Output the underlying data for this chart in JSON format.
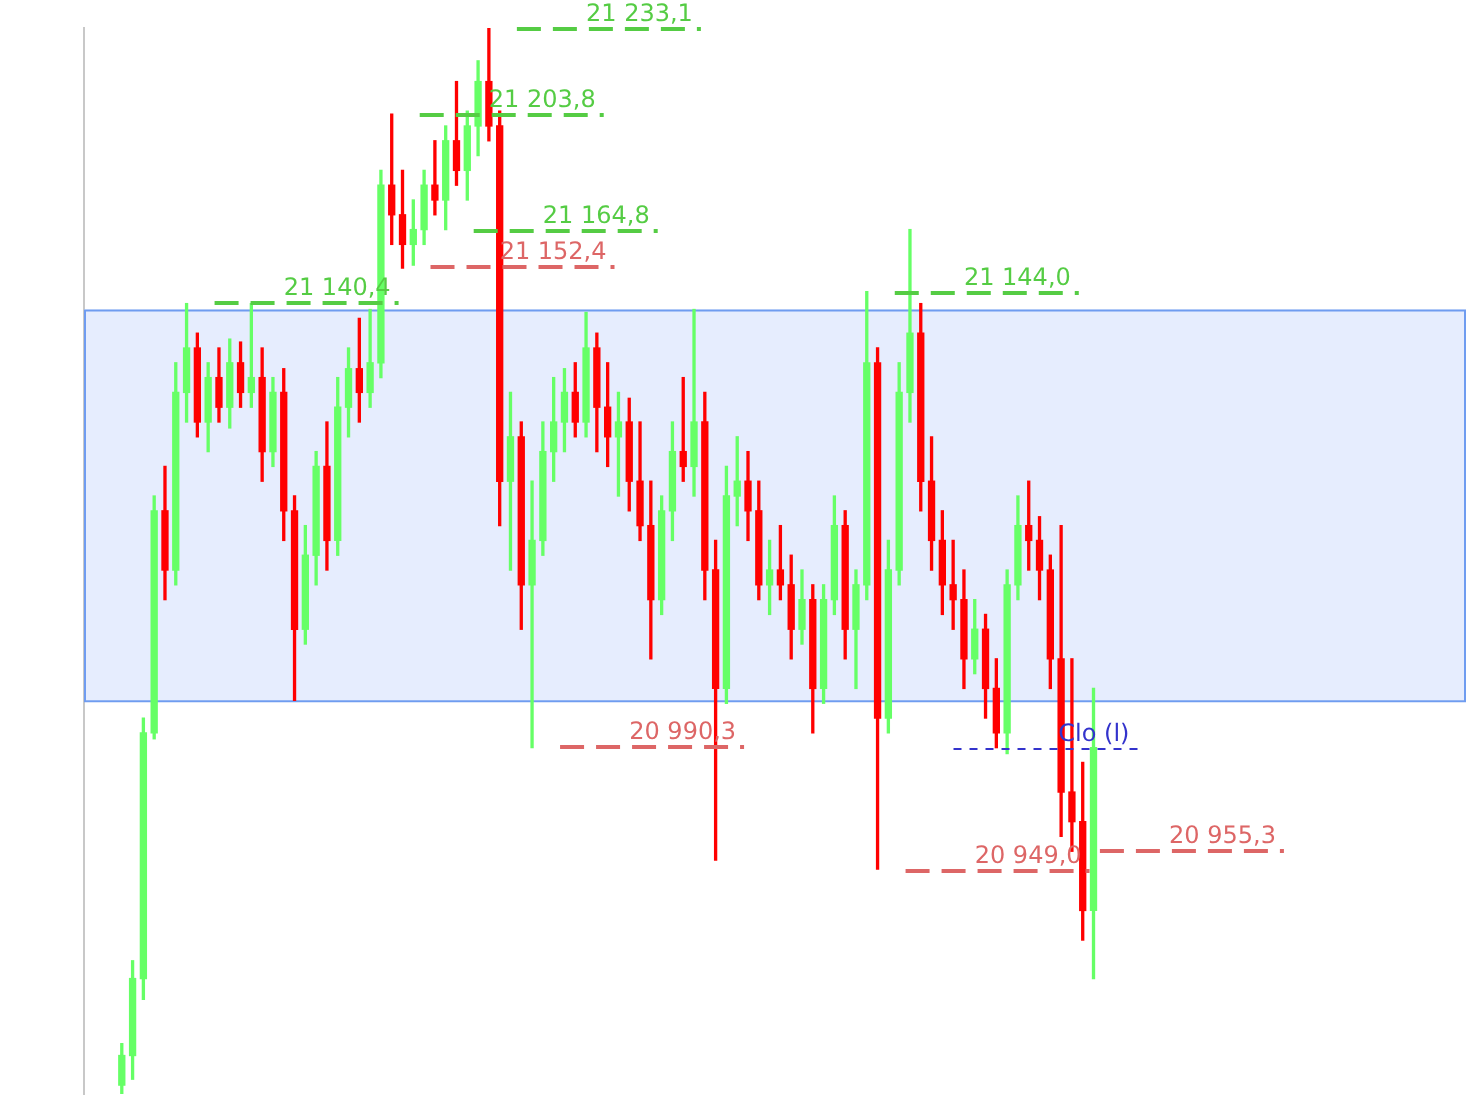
{
  "chart_data": {
    "type": "candlestick",
    "categories": [
      null,
      null,
      null,
      null,
      null,
      null,
      null,
      null,
      null,
      null,
      null,
      null,
      null,
      null,
      null,
      null,
      null,
      null,
      null,
      null,
      null,
      null,
      null,
      null,
      null,
      null,
      null,
      null,
      null,
      null,
      null,
      null,
      null,
      null,
      null,
      null,
      null,
      null,
      null,
      null,
      null,
      null,
      null,
      null,
      null,
      null,
      null,
      null,
      null,
      null,
      null,
      null,
      null,
      null,
      null,
      null,
      null,
      null,
      null,
      null,
      null,
      null,
      null,
      null,
      null,
      null,
      null,
      null,
      null,
      null,
      null,
      null,
      null,
      null,
      null,
      null,
      null,
      null,
      null,
      null,
      null,
      null,
      null,
      null,
      null,
      null,
      null,
      null,
      null,
      null,
      null,
      null,
      null,
      null,
      null,
      null,
      null,
      null,
      null,
      null,
      null,
      null,
      null,
      null,
      null,
      null,
      null,
      null,
      null,
      null,
      null,
      null,
      null,
      null,
      null,
      null,
      null,
      null,
      null,
      null,
      null,
      null,
      null,
      null,
      null,
      null,
      null,
      null
    ],
    "ohlc": [
      null,
      null,
      null,
      [
        20876,
        20890,
        20873,
        20886
      ],
      [
        20886,
        20918,
        20878,
        20912
      ],
      [
        20912,
        21000,
        20905,
        20995
      ],
      [
        20995,
        21075,
        20993,
        21070
      ],
      [
        21070,
        21085,
        21040,
        21050
      ],
      [
        21050,
        21120,
        21045,
        21110
      ],
      [
        21110,
        21140,
        21100,
        21125
      ],
      [
        21125,
        21130,
        21095,
        21100
      ],
      [
        21100,
        21120,
        21090,
        21115
      ],
      [
        21115,
        21125,
        21100,
        21105
      ],
      [
        21105,
        21128,
        21098,
        21120
      ],
      [
        21120,
        21127,
        21105,
        21110
      ],
      [
        21110,
        21140,
        21105,
        21115
      ],
      [
        21115,
        21125,
        21080,
        21090
      ],
      [
        21090,
        21115,
        21085,
        21110
      ],
      [
        21110,
        21118,
        21060,
        21070
      ],
      [
        21070,
        21075,
        21006,
        21030
      ],
      [
        21030,
        21065,
        21025,
        21055
      ],
      [
        21055,
        21090,
        21045,
        21085
      ],
      [
        21085,
        21100,
        21050,
        21060
      ],
      [
        21060,
        21115,
        21055,
        21105
      ],
      [
        21105,
        21125,
        21095,
        21118
      ],
      [
        21118,
        21135,
        21100,
        21110
      ],
      [
        21110,
        21138,
        21105,
        21120
      ],
      [
        21120,
        21185,
        21115,
        21180
      ],
      [
        21180,
        21204,
        21160,
        21170
      ],
      [
        21170,
        21185,
        21152,
        21160
      ],
      [
        21160,
        21175,
        21153,
        21165
      ],
      [
        21165,
        21185,
        21160,
        21180
      ],
      [
        21180,
        21195,
        21170,
        21175
      ],
      [
        21175,
        21200,
        21165,
        21195
      ],
      [
        21195,
        21215,
        21180,
        21185
      ],
      [
        21185,
        21205,
        21175,
        21200
      ],
      [
        21200,
        21222,
        21190,
        21215
      ],
      [
        21215,
        21233.1,
        21195,
        21200
      ],
      [
        21200,
        21205,
        21065,
        21080
      ],
      [
        21080,
        21110,
        21050,
        21095
      ],
      [
        21095,
        21100,
        21030,
        21045
      ],
      [
        21045,
        21080,
        20990,
        21060
      ],
      [
        21060,
        21100,
        21055,
        21090
      ],
      [
        21090,
        21115,
        21080,
        21100
      ],
      [
        21100,
        21118,
        21090,
        21110
      ],
      [
        21110,
        21120,
        21095,
        21100
      ],
      [
        21100,
        21137,
        21095,
        21125
      ],
      [
        21125,
        21130,
        21090,
        21105
      ],
      [
        21105,
        21120,
        21085,
        21095
      ],
      [
        21095,
        21110,
        21075,
        21100
      ],
      [
        21100,
        21108,
        21070,
        21080
      ],
      [
        21080,
        21100,
        21060,
        21065
      ],
      [
        21065,
        21080,
        21020,
        21040
      ],
      [
        21040,
        21075,
        21035,
        21070
      ],
      [
        21070,
        21100,
        21060,
        21090
      ],
      [
        21090,
        21115,
        21080,
        21085
      ],
      [
        21085,
        21138,
        21075,
        21100
      ],
      [
        21100,
        21110,
        21040,
        21050
      ],
      [
        21050,
        21060,
        20952,
        21010
      ],
      [
        21010,
        21085,
        21005,
        21075
      ],
      [
        21075,
        21095,
        21065,
        21080
      ],
      [
        21080,
        21090,
        21060,
        21070
      ],
      [
        21070,
        21080,
        21040,
        21045
      ],
      [
        21045,
        21060,
        21035,
        21050
      ],
      [
        21050,
        21065,
        21040,
        21045
      ],
      [
        21045,
        21055,
        21020,
        21030
      ],
      [
        21030,
        21050,
        21025,
        21040
      ],
      [
        21040,
        21045,
        20995,
        21010
      ],
      [
        21010,
        21045,
        21005,
        21040
      ],
      [
        21040,
        21075,
        21035,
        21065
      ],
      [
        21065,
        21070,
        21020,
        21030
      ],
      [
        21030,
        21050,
        21010,
        21045
      ],
      [
        21045,
        21144,
        21040,
        21120
      ],
      [
        21120,
        21125,
        20949,
        21000
      ],
      [
        21000,
        21060,
        20995,
        21050
      ],
      [
        21050,
        21120,
        21045,
        21110
      ],
      [
        21110,
        21165,
        21100,
        21130
      ],
      [
        21130,
        21140,
        21070,
        21080
      ],
      [
        21080,
        21095,
        21050,
        21060
      ],
      [
        21060,
        21070,
        21035,
        21045
      ],
      [
        21045,
        21060,
        21030,
        21040
      ],
      [
        21040,
        21050,
        21010,
        21020
      ],
      [
        21020,
        21040,
        21015,
        21030
      ],
      [
        21030,
        21035,
        21000,
        21010
      ],
      [
        21010,
        21020,
        20990,
        20995
      ],
      [
        20995,
        21050,
        20988,
        21045
      ],
      [
        21045,
        21075,
        21040,
        21065
      ],
      [
        21065,
        21080,
        21050,
        21060
      ],
      [
        21060,
        21068,
        21040,
        21050
      ],
      [
        21050,
        21055,
        21010,
        21020
      ],
      [
        21020,
        21065,
        20960,
        20975
      ],
      [
        20975,
        21020,
        20955,
        20965
      ],
      [
        20965,
        20985,
        20925,
        20935
      ],
      [
        20935,
        21010,
        20912,
        20990
      ],
      null,
      null,
      null,
      null,
      null,
      null,
      null,
      null,
      null,
      null,
      null,
      null,
      null,
      null,
      null,
      null,
      null,
      null,
      null,
      null,
      null,
      null,
      null,
      null,
      null,
      null,
      null,
      null,
      null,
      null,
      null,
      null,
      null,
      null
    ],
    "colors": [
      null,
      null,
      null,
      "#66ff66",
      "#66ff66",
      "#66ff66",
      "#66ff66",
      "#ff0000",
      "#66ff66",
      "#66ff66",
      "#ff0000",
      "#66ff66",
      "#ff0000",
      "#66ff66",
      "#ff0000",
      "#66ff66",
      "#ff0000",
      "#66ff66",
      "#ff0000",
      "#ff0000",
      "#66ff66",
      "#66ff66",
      "#ff0000",
      "#66ff66",
      "#66ff66",
      "#ff0000",
      "#66ff66",
      "#66ff66",
      "#ff0000",
      "#ff0000",
      "#66ff66",
      "#66ff66",
      "#ff0000",
      "#66ff66",
      "#ff0000",
      "#66ff66",
      "#66ff66",
      "#ff0000",
      "#ff0000",
      "#66ff66",
      "#ff0000",
      "#66ff66",
      "#66ff66",
      "#66ff66",
      "#66ff66",
      "#ff0000",
      "#66ff66",
      "#ff0000",
      "#ff0000",
      "#66ff66",
      "#ff0000",
      "#ff0000",
      "#ff0000",
      "#66ff66",
      "#66ff66",
      "#ff0000",
      "#66ff66",
      "#ff0000",
      "#ff0000",
      "#66ff66",
      "#66ff66",
      "#ff0000",
      "#ff0000",
      "#66ff66",
      "#ff0000",
      "#ff0000",
      "#66ff66",
      "#ff0000",
      "#66ff66",
      "#66ff66",
      "#ff0000",
      "#66ff66",
      "#66ff66",
      "#ff0000",
      "#66ff66",
      "#66ff66",
      "#66ff66",
      "#ff0000",
      "#ff0000",
      "#ff0000",
      "#ff0000",
      "#ff0000",
      "#66ff66",
      "#ff0000",
      "#ff0000",
      "#66ff66",
      "#66ff66",
      "#ff0000",
      "#ff0000",
      "#ff0000",
      "#ff0000",
      "#ff0000",
      "#ff0000",
      "#66ff66",
      null,
      null,
      null,
      null,
      null,
      null,
      null,
      null,
      null,
      null,
      null,
      null,
      null,
      null,
      null,
      null,
      null,
      null,
      null,
      null,
      null,
      null,
      null,
      null,
      null,
      null,
      null,
      null,
      null,
      null,
      null,
      null,
      null,
      null
    ],
    "ylim": [
      20873,
      21233.1
    ],
    "tick_labels": false,
    "grid": false,
    "legend": false,
    "bands": [
      {
        "axis": "y",
        "from": 21006,
        "to": 21138,
        "color": "#e6edfe"
      }
    ],
    "ref_lines": [
      {
        "axis": "y",
        "value": 21233.1,
        "label": "21 233,1",
        "color": "#55cc44",
        "line_style": "dashed"
      },
      {
        "axis": "y",
        "value": 21203.8,
        "label": "21 203,8",
        "color": "#55cc44",
        "line_style": "dashed"
      },
      {
        "axis": "y",
        "value": 21164.8,
        "label": "21 164,8",
        "color": "#55cc44",
        "line_style": "dashed"
      },
      {
        "axis": "y",
        "value": 21152.4,
        "label": "21 152,4",
        "color": "#dd6666",
        "line_style": "dashed"
      },
      {
        "axis": "y",
        "value": 21144.0,
        "label": "21 144,0",
        "color": "#55cc44",
        "line_style": "dashed"
      },
      {
        "axis": "y",
        "value": 21140.4,
        "label": "21 140,4",
        "color": "#55cc44",
        "line_style": "dashed"
      },
      {
        "axis": "y",
        "value": 20990.3,
        "label": "20 990,3",
        "color": "#dd6666",
        "line_style": "dashed"
      },
      {
        "axis": "y",
        "value": 20955.3,
        "label": "20 955,3",
        "color": "#dd6666",
        "line_style": "dashed"
      },
      {
        "axis": "y",
        "value": 20949.0,
        "label": "20 949,0",
        "color": "#dd6666",
        "line_style": "dashed"
      },
      {
        "axis": "y",
        "value": 20990,
        "label": "Clo (l)",
        "color": "#3333cc",
        "line_style": "dotted"
      }
    ]
  }
}
